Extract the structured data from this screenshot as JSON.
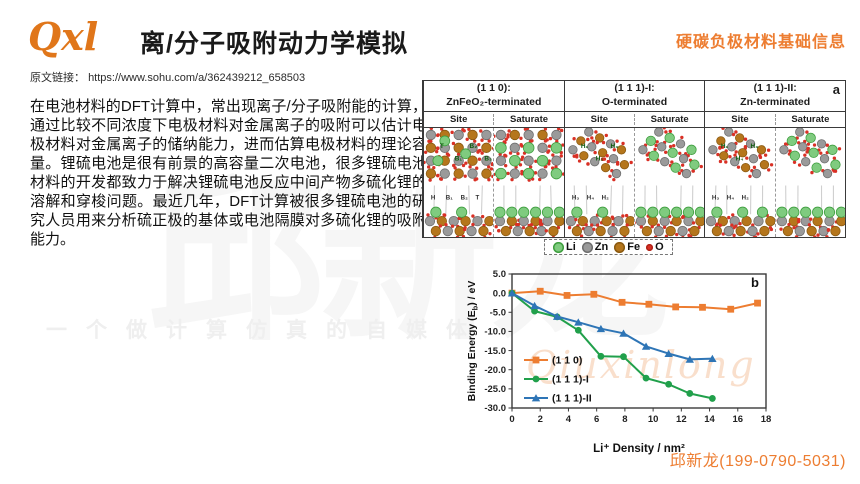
{
  "header": {
    "logo": "Qxl",
    "title": "离/分子吸附动力学模拟",
    "tag": "硬碳负极材料基础信息"
  },
  "source": {
    "label": "原文链接：",
    "url": "https://www.sohu.com/a/362439212_658503"
  },
  "body": {
    "paragraph": "在电池材料的DFT计算中，常出现离子/分子吸附能的计算，通过比较不同浓度下电极材料对金属离子的吸附可以估计电极材料对金属离子的储纳能力，进而估算电极材料的理论容量。锂硫电池是很有前景的高容量二次电池，很多锂硫电池材料的开发都致力于解决锂硫电池反应中间产物多硫化锂的溶解和穿梭问题。最近几年，DFT计算被很多锂硫电池的研究人员用来分析硫正极的基体或电池隔膜对多硫化锂的吸附能力。"
  },
  "figure": {
    "panel_a_label": "a",
    "groups": [
      {
        "title_line1": "(1 1 0):",
        "title_line2": "ZnFeO₂-terminated"
      },
      {
        "title_line1": "(1 1 1)-I:",
        "title_line2": "O-terminated"
      },
      {
        "title_line1": "(1 1 1)-II:",
        "title_line2": "Zn-terminated"
      }
    ],
    "subheaders": [
      "Site",
      "Saturate"
    ],
    "atoms": {
      "li": "#7FCB7F",
      "li_ring": "#3E9E3E",
      "zn": "#9A9A9A",
      "zn_ring": "#6f6f6f",
      "fe": "#B5761C",
      "fe_ring": "#8a5a12",
      "o": "#D93025"
    },
    "cells": [
      {
        "top": "front",
        "saturate": false,
        "side_green": 2,
        "top_labels": [
          "T",
          "B₁",
          "B₂",
          "B₃"
        ],
        "side_labels": [
          "H",
          "B₁",
          "B₂",
          "T"
        ]
      },
      {
        "top": "front",
        "saturate": true,
        "side_green": 6,
        "top_labels": [],
        "side_labels": []
      },
      {
        "top": "diag",
        "saturate": false,
        "side_green": 2,
        "top_labels": [
          "H₁",
          "H₂",
          "H₃"
        ],
        "side_labels": [
          "H₃",
          "H₄",
          "H₂"
        ]
      },
      {
        "top": "diag",
        "saturate": true,
        "side_green": 6,
        "top_labels": [],
        "side_labels": []
      },
      {
        "top": "diag",
        "saturate": false,
        "side_green": 3,
        "top_labels": [
          "H₁",
          "H₄",
          "H₃"
        ],
        "side_labels": [
          "H₃",
          "H₄",
          "H₂"
        ]
      },
      {
        "top": "diag",
        "saturate": true,
        "side_green": 6,
        "top_labels": [],
        "side_labels": []
      }
    ],
    "atom_legend": [
      {
        "label": "Li",
        "color": "#7FCB7F",
        "ring": "#3E9E3E",
        "size": 11
      },
      {
        "label": "Zn",
        "color": "#9A9A9A",
        "ring": "#6f6f6f",
        "size": 11
      },
      {
        "label": "Fe",
        "color": "#B5761C",
        "ring": "#8a5a12",
        "size": 11
      },
      {
        "label": "O",
        "color": "#D93025",
        "ring": "#b02318",
        "size": 7
      }
    ]
  },
  "chart_data": {
    "type": "line",
    "title": "",
    "xlabel": "Li⁺ Density / nm²",
    "ylabel": "Binding Energy (Eb) / eV",
    "ylabel_parts": {
      "pre": "Binding Energy (E",
      "sub": "b",
      "post": ") / eV"
    },
    "xlim": [
      0,
      18
    ],
    "ylim": [
      -30,
      5
    ],
    "xticks": [
      0,
      2,
      4,
      6,
      8,
      10,
      12,
      14,
      16,
      18
    ],
    "yticks": [
      5,
      0,
      -5,
      -10,
      -15,
      -20,
      -25,
      -30
    ],
    "panel_label": "b",
    "grid": false,
    "legend_position": "inside-left-bottom",
    "series": [
      {
        "name": "(1 1 0)",
        "color": "#ED7D31",
        "marker": "square",
        "x": [
          0,
          2,
          3.9,
          5.8,
          7.8,
          9.7,
          11.6,
          13.5,
          15.5,
          17.4
        ],
        "y": [
          0,
          0.5,
          -0.6,
          -0.3,
          -2.4,
          -2.9,
          -3.6,
          -3.7,
          -4.2,
          -2.6
        ]
      },
      {
        "name": "(1 1 1)-I",
        "color": "#21A04B",
        "marker": "circle",
        "x": [
          0,
          1.6,
          3.2,
          4.7,
          6.3,
          7.9,
          9.5,
          11.1,
          12.6,
          14.2
        ],
        "y": [
          0,
          -4.7,
          -6.2,
          -9.7,
          -16.5,
          -16.6,
          -22.2,
          -23.8,
          -26.2,
          -27.5
        ]
      },
      {
        "name": "(1 1 1)-II",
        "color": "#2E75B6",
        "marker": "triangle",
        "x": [
          0,
          1.6,
          3.2,
          4.7,
          6.3,
          7.9,
          9.5,
          11.1,
          12.6,
          14.2
        ],
        "y": [
          0,
          -3.3,
          -6.1,
          -7.6,
          -9.3,
          -10.5,
          -13.9,
          -15.8,
          -17.3,
          -17.1
        ]
      }
    ]
  },
  "watermarks": {
    "row": "一个做计算仿真的自媒体",
    "big": "邱新龙",
    "script": "Qiuxinlong"
  },
  "footer": {
    "contact": "邱新龙(199-0790-5031)"
  },
  "colors": {
    "accent": "#ED7D31"
  }
}
